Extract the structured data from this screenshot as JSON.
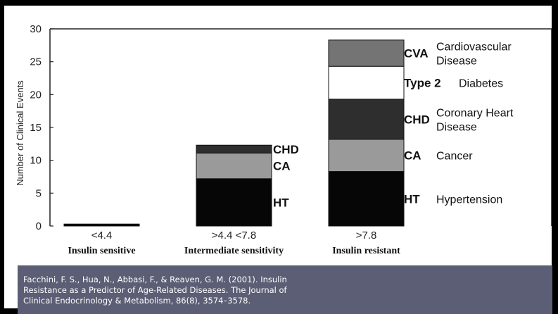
{
  "chart_data": {
    "type": "bar",
    "stacked": true,
    "ylabel": "Number of Clinical Events",
    "ylim": [
      0,
      30
    ],
    "yticks": [
      0,
      5,
      10,
      15,
      20,
      25,
      30
    ],
    "categories": [
      "<4.4",
      ">4.4 <7.8",
      ">7.8"
    ],
    "category_names": [
      "Insulin sensitive",
      "Intermediate sensitivity",
      "Insulin resistant"
    ],
    "series": [
      {
        "name": "HT",
        "full_name": "Hypertension",
        "color": "#060606",
        "values": [
          0.3,
          7.2,
          8.3
        ]
      },
      {
        "name": "CA",
        "full_name": "Cancer",
        "color": "#9a9a9a",
        "values": [
          0,
          3.9,
          4.9
        ]
      },
      {
        "name": "CHD",
        "full_name": "Coronary Heart Disease",
        "color": "#2e2e2e",
        "values": [
          0,
          1.2,
          6.1
        ]
      },
      {
        "name": "Type 2",
        "full_name": "Diabetes",
        "color": "#ffffff",
        "values": [
          0,
          0,
          5.0
        ]
      },
      {
        "name": "CVA",
        "full_name": "Cardiovascular Disease",
        "color": "#747474",
        "values": [
          0,
          0,
          4.0
        ]
      }
    ],
    "grid": false
  },
  "caption": {
    "text": "Facchini, F. S., Hua, N., Abbasi, F., & Reaven, G. M. (2001). Insulin Resistance as a Predictor of Age-Related Diseases. The Journal of Clinical Endocrinology & Metabolism, 86(8), 3574–3578."
  }
}
